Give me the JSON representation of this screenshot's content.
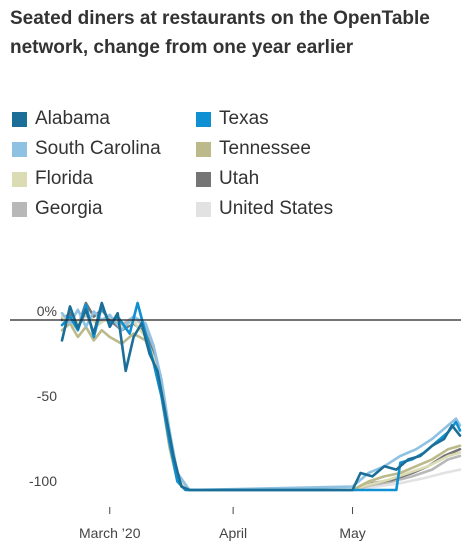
{
  "chart_data": {
    "type": "line",
    "title": "Seated diners at restaurants on the OpenTable network, change from one year earlier",
    "xlabel": "",
    "ylabel": "",
    "x_start": "2020-02-18",
    "x_end": "2020-05-28",
    "xticks": [
      {
        "date": "2020-03-01",
        "label": "March ’20"
      },
      {
        "date": "2020-04-01",
        "label": "April"
      },
      {
        "date": "2020-05-01",
        "label": "May"
      }
    ],
    "yticks": [
      {
        "value": 0,
        "label": "0%"
      },
      {
        "value": -50,
        "label": "-50"
      },
      {
        "value": -100,
        "label": "-100"
      }
    ],
    "ylim": [
      -105,
      15
    ],
    "grid": false,
    "legend_position": "top",
    "series": [
      {
        "name": "Alabama",
        "color": "#1b6e98",
        "points": [
          [
            "2020-02-18",
            -12
          ],
          [
            "2020-02-20",
            8
          ],
          [
            "2020-02-22",
            -5
          ],
          [
            "2020-02-24",
            6
          ],
          [
            "2020-02-26",
            -8
          ],
          [
            "2020-02-28",
            10
          ],
          [
            "2020-03-01",
            -4
          ],
          [
            "2020-03-03",
            4
          ],
          [
            "2020-03-05",
            -30
          ],
          [
            "2020-03-07",
            -10
          ],
          [
            "2020-03-09",
            -2
          ],
          [
            "2020-03-11",
            -20
          ],
          [
            "2020-03-13",
            -30
          ],
          [
            "2020-03-15",
            -55
          ],
          [
            "2020-03-17",
            -80
          ],
          [
            "2020-03-19",
            -98
          ],
          [
            "2020-03-21",
            -100
          ],
          [
            "2020-05-01",
            -100
          ],
          [
            "2020-05-03",
            -90
          ],
          [
            "2020-05-06",
            -92
          ],
          [
            "2020-05-09",
            -86
          ],
          [
            "2020-05-12",
            -88
          ],
          [
            "2020-05-15",
            -82
          ],
          [
            "2020-05-18",
            -80
          ],
          [
            "2020-05-21",
            -74
          ],
          [
            "2020-05-24",
            -70
          ],
          [
            "2020-05-26",
            -62
          ],
          [
            "2020-05-28",
            -68
          ]
        ]
      },
      {
        "name": "Texas",
        "color": "#0e90d2",
        "points": [
          [
            "2020-02-18",
            -3
          ],
          [
            "2020-02-20",
            2
          ],
          [
            "2020-02-22",
            -6
          ],
          [
            "2020-02-24",
            9
          ],
          [
            "2020-02-26",
            -10
          ],
          [
            "2020-02-28",
            8
          ],
          [
            "2020-03-01",
            -2
          ],
          [
            "2020-03-03",
            2
          ],
          [
            "2020-03-06",
            -8
          ],
          [
            "2020-03-08",
            10
          ],
          [
            "2020-03-10",
            -8
          ],
          [
            "2020-03-12",
            -25
          ],
          [
            "2020-03-14",
            -45
          ],
          [
            "2020-03-16",
            -72
          ],
          [
            "2020-03-18",
            -95
          ],
          [
            "2020-03-20",
            -100
          ],
          [
            "2020-05-12",
            -100
          ],
          [
            "2020-05-13",
            -84
          ],
          [
            "2020-05-16",
            -82
          ],
          [
            "2020-05-19",
            -78
          ],
          [
            "2020-05-22",
            -72
          ],
          [
            "2020-05-25",
            -66
          ],
          [
            "2020-05-27",
            -60
          ],
          [
            "2020-05-28",
            -65
          ]
        ]
      },
      {
        "name": "South Carolina",
        "color": "#8fc1e3",
        "points": [
          [
            "2020-02-18",
            4
          ],
          [
            "2020-02-20",
            -2
          ],
          [
            "2020-02-22",
            6
          ],
          [
            "2020-02-24",
            -4
          ],
          [
            "2020-02-26",
            5
          ],
          [
            "2020-02-28",
            0
          ],
          [
            "2020-03-01",
            3
          ],
          [
            "2020-03-04",
            -6
          ],
          [
            "2020-03-07",
            2
          ],
          [
            "2020-03-10",
            -2
          ],
          [
            "2020-03-12",
            -15
          ],
          [
            "2020-03-14",
            -35
          ],
          [
            "2020-03-16",
            -65
          ],
          [
            "2020-03-18",
            -90
          ],
          [
            "2020-03-21",
            -100
          ],
          [
            "2020-05-01",
            -98
          ],
          [
            "2020-05-05",
            -90
          ],
          [
            "2020-05-09",
            -86
          ],
          [
            "2020-05-13",
            -80
          ],
          [
            "2020-05-17",
            -76
          ],
          [
            "2020-05-21",
            -70
          ],
          [
            "2020-05-25",
            -62
          ],
          [
            "2020-05-27",
            -58
          ],
          [
            "2020-05-28",
            -62
          ]
        ]
      },
      {
        "name": "Tennessee",
        "color": "#bcb98a",
        "points": [
          [
            "2020-02-18",
            -6
          ],
          [
            "2020-02-20",
            -2
          ],
          [
            "2020-02-22",
            -10
          ],
          [
            "2020-02-24",
            -4
          ],
          [
            "2020-02-26",
            -12
          ],
          [
            "2020-02-28",
            -6
          ],
          [
            "2020-03-01",
            -10
          ],
          [
            "2020-03-04",
            -14
          ],
          [
            "2020-03-07",
            -8
          ],
          [
            "2020-03-10",
            -12
          ],
          [
            "2020-03-12",
            -25
          ],
          [
            "2020-03-14",
            -45
          ],
          [
            "2020-03-16",
            -75
          ],
          [
            "2020-03-18",
            -95
          ],
          [
            "2020-03-20",
            -100
          ],
          [
            "2020-05-01",
            -100
          ],
          [
            "2020-05-05",
            -95
          ],
          [
            "2020-05-09",
            -92
          ],
          [
            "2020-05-13",
            -90
          ],
          [
            "2020-05-17",
            -86
          ],
          [
            "2020-05-21",
            -82
          ],
          [
            "2020-05-25",
            -76
          ],
          [
            "2020-05-28",
            -74
          ]
        ]
      },
      {
        "name": "Florida",
        "color": "#dcdcb4",
        "points": [
          [
            "2020-02-18",
            2
          ],
          [
            "2020-02-21",
            -4
          ],
          [
            "2020-02-24",
            4
          ],
          [
            "2020-02-27",
            -3
          ],
          [
            "2020-03-01",
            2
          ],
          [
            "2020-03-04",
            -4
          ],
          [
            "2020-03-07",
            -1
          ],
          [
            "2020-03-10",
            -10
          ],
          [
            "2020-03-12",
            -22
          ],
          [
            "2020-03-14",
            -42
          ],
          [
            "2020-03-16",
            -70
          ],
          [
            "2020-03-18",
            -92
          ],
          [
            "2020-03-21",
            -100
          ],
          [
            "2020-05-01",
            -100
          ],
          [
            "2020-05-05",
            -97
          ],
          [
            "2020-05-10",
            -94
          ],
          [
            "2020-05-15",
            -90
          ],
          [
            "2020-05-20",
            -86
          ],
          [
            "2020-05-25",
            -80
          ],
          [
            "2020-05-28",
            -78
          ]
        ]
      },
      {
        "name": "Utah",
        "color": "#757575",
        "points": [
          [
            "2020-02-18",
            0
          ],
          [
            "2020-02-20",
            4
          ],
          [
            "2020-02-22",
            -4
          ],
          [
            "2020-02-24",
            10
          ],
          [
            "2020-02-26",
            2
          ],
          [
            "2020-02-28",
            6
          ],
          [
            "2020-03-01",
            0
          ],
          [
            "2020-03-04",
            -6
          ],
          [
            "2020-03-07",
            -2
          ],
          [
            "2020-03-10",
            -8
          ],
          [
            "2020-03-12",
            -20
          ],
          [
            "2020-03-14",
            -40
          ],
          [
            "2020-03-16",
            -68
          ],
          [
            "2020-03-18",
            -92
          ],
          [
            "2020-03-21",
            -100
          ],
          [
            "2020-05-01",
            -100
          ],
          [
            "2020-05-06",
            -96
          ],
          [
            "2020-05-11",
            -94
          ],
          [
            "2020-05-16",
            -90
          ],
          [
            "2020-05-20",
            -86
          ],
          [
            "2020-05-24",
            -80
          ],
          [
            "2020-05-28",
            -76
          ]
        ]
      },
      {
        "name": "Georgia",
        "color": "#b8b8b8",
        "points": [
          [
            "2020-02-18",
            1
          ],
          [
            "2020-02-21",
            -3
          ],
          [
            "2020-02-24",
            3
          ],
          [
            "2020-02-27",
            -2
          ],
          [
            "2020-03-01",
            1
          ],
          [
            "2020-03-04",
            -3
          ],
          [
            "2020-03-07",
            2
          ],
          [
            "2020-03-10",
            -4
          ],
          [
            "2020-03-12",
            -18
          ],
          [
            "2020-03-14",
            -40
          ],
          [
            "2020-03-16",
            -68
          ],
          [
            "2020-03-18",
            -92
          ],
          [
            "2020-03-21",
            -100
          ],
          [
            "2020-05-01",
            -100
          ],
          [
            "2020-05-06",
            -97
          ],
          [
            "2020-05-11",
            -95
          ],
          [
            "2020-05-16",
            -92
          ],
          [
            "2020-05-21",
            -88
          ],
          [
            "2020-05-25",
            -82
          ],
          [
            "2020-05-28",
            -80
          ]
        ]
      },
      {
        "name": "United States",
        "color": "#e2e2e2",
        "points": [
          [
            "2020-02-18",
            0
          ],
          [
            "2020-02-21",
            -2
          ],
          [
            "2020-02-24",
            2
          ],
          [
            "2020-02-27",
            -1
          ],
          [
            "2020-03-01",
            1
          ],
          [
            "2020-03-04",
            -2
          ],
          [
            "2020-03-07",
            0
          ],
          [
            "2020-03-10",
            -4
          ],
          [
            "2020-03-12",
            -15
          ],
          [
            "2020-03-14",
            -38
          ],
          [
            "2020-03-16",
            -66
          ],
          [
            "2020-03-18",
            -90
          ],
          [
            "2020-03-21",
            -100
          ],
          [
            "2020-05-01",
            -100
          ],
          [
            "2020-05-07",
            -98
          ],
          [
            "2020-05-13",
            -96
          ],
          [
            "2020-05-19",
            -93
          ],
          [
            "2020-05-24",
            -90
          ],
          [
            "2020-05-28",
            -88
          ]
        ]
      }
    ]
  }
}
